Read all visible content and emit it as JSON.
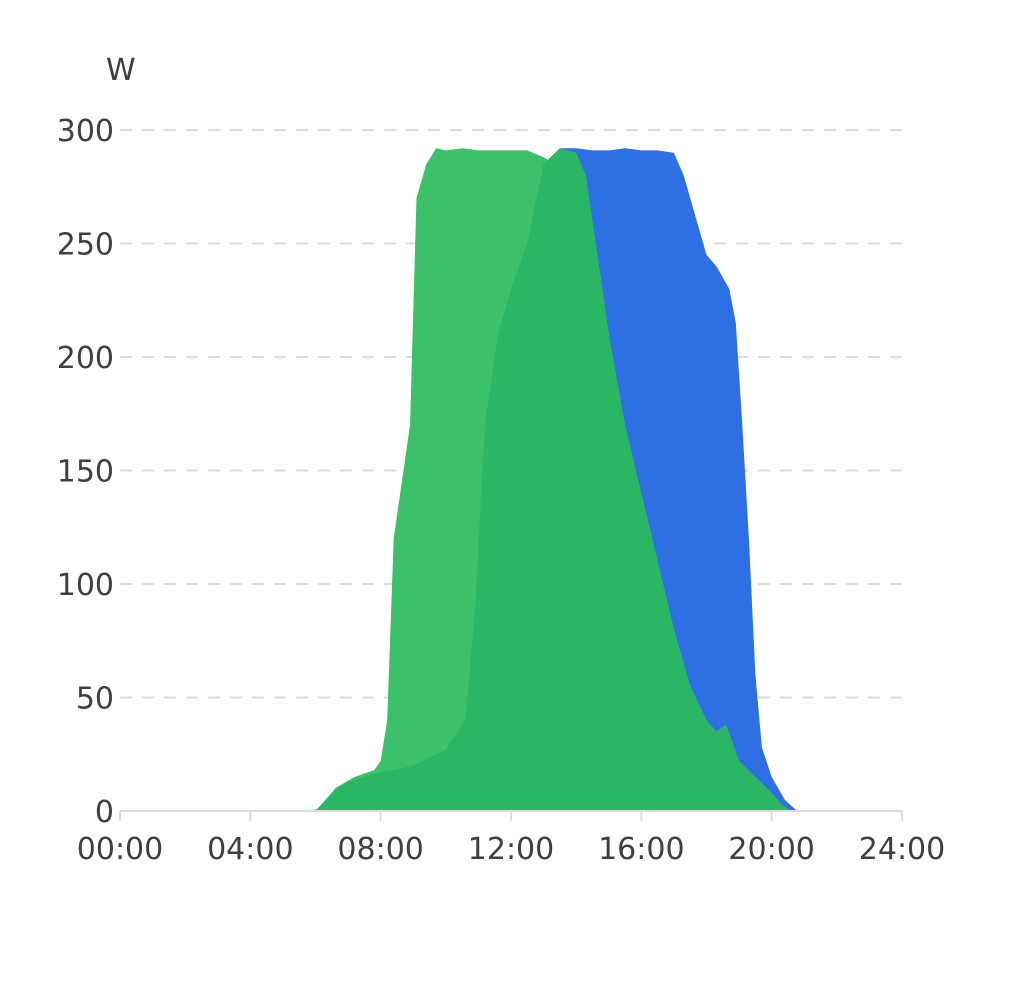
{
  "chart_data": {
    "type": "area",
    "ylabel": "W",
    "ylim": [
      0,
      300
    ],
    "y_ticks": [
      "0",
      "50",
      "100",
      "150",
      "200",
      "250",
      "300"
    ],
    "xlim": [
      0,
      24
    ],
    "x_ticks": [
      "00:00",
      "04:00",
      "08:00",
      "12:00",
      "16:00",
      "20:00",
      "24:00"
    ],
    "grid": true,
    "x_unit": "hour",
    "series": [
      {
        "color": "#2f6fe4",
        "x": [
          5.6,
          6.1,
          6.5,
          7.0,
          8.0,
          9.0,
          10.0,
          10.8,
          11.0,
          11.2,
          11.6,
          12.0,
          12.5,
          13.0,
          13.5,
          14.0,
          14.5,
          15.0,
          15.5,
          16.0,
          16.5,
          17.0,
          17.3,
          17.7,
          18.0,
          18.3,
          18.7,
          18.9,
          19.1,
          19.3,
          19.5,
          19.7,
          20.0,
          20.4,
          20.7,
          20.8
        ],
        "y": [
          0,
          0.5,
          8,
          13,
          17,
          20,
          27,
          40,
          90,
          170,
          210,
          230,
          250,
          285,
          292,
          292,
          291,
          291,
          292,
          291,
          291,
          290,
          280,
          260,
          245,
          240,
          230,
          215,
          170,
          120,
          60,
          28,
          15,
          5,
          1,
          0
        ]
      },
      {
        "color": "#3cc16a",
        "x": [
          5.6,
          6.2,
          6.6,
          7.2,
          7.8,
          8.0,
          8.2,
          8.4,
          8.7,
          8.9,
          9.1,
          9.4,
          9.7,
          10.0,
          10.5,
          11.0,
          11.5,
          12.0,
          12.5,
          13.0,
          13.5,
          13.8,
          14.2,
          14.6,
          15.0,
          15.5,
          16.0,
          16.5,
          17.0,
          17.5,
          18.0,
          18.3,
          18.6,
          19.0,
          19.5,
          20.0,
          20.3,
          20.6
        ],
        "y": [
          0,
          1,
          10,
          15,
          18,
          22,
          40,
          120,
          150,
          170,
          270,
          285,
          292,
          291,
          292,
          291,
          291,
          291,
          291,
          288,
          284,
          290,
          280,
          250,
          210,
          170,
          140,
          110,
          80,
          55,
          40,
          35,
          38,
          22,
          15,
          8,
          3,
          0
        ]
      },
      {
        "color": "#2bb666",
        "x": [
          6.0,
          6.5,
          7.0,
          8.0,
          9.0,
          10.0,
          10.6,
          10.9,
          11.2,
          11.6,
          12.0,
          12.5,
          13.0,
          13.5,
          14.0,
          14.3,
          14.6,
          15.0,
          15.5,
          16.0,
          16.5,
          17.0,
          17.5,
          18.0,
          18.3,
          18.6,
          19.0,
          19.5,
          20.0,
          20.3,
          20.6
        ],
        "y": [
          0,
          8,
          13,
          17,
          20,
          27,
          40,
          90,
          170,
          210,
          230,
          250,
          285,
          292,
          290,
          280,
          250,
          210,
          170,
          140,
          110,
          80,
          55,
          40,
          35,
          38,
          22,
          15,
          8,
          3,
          0
        ]
      }
    ]
  }
}
